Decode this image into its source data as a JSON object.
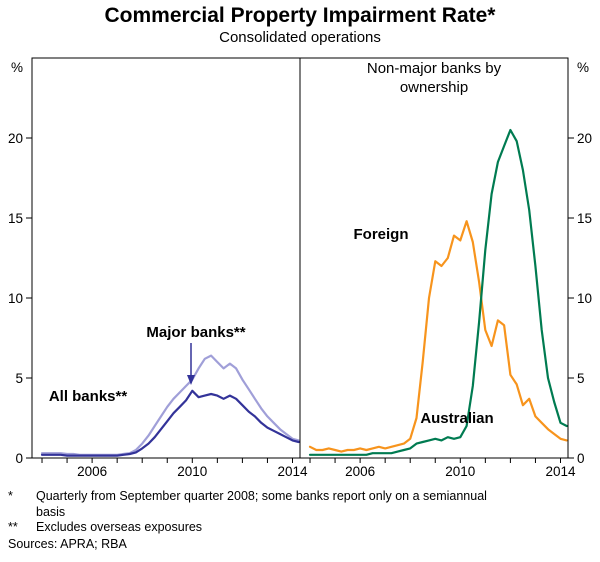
{
  "header": {
    "title": "Commercial Property Impairment Rate*",
    "subtitle": "Consolidated operations"
  },
  "right_panel": {
    "title_line1": "Non-major banks by",
    "title_line2": "ownership"
  },
  "annotations": {
    "all_banks": "All banks**",
    "major_banks": "Major banks**",
    "foreign": "Foreign",
    "australian": "Australian"
  },
  "footnotes": [
    {
      "marker": "*",
      "text": "Quarterly from September quarter 2008; some banks report only on a semiannual basis"
    },
    {
      "marker": "**",
      "text": "Excludes overseas exposures"
    }
  ],
  "sources": "Sources: APRA; RBA",
  "chart_data": [
    {
      "type": "line",
      "panel": "left",
      "panel_title": "",
      "x_start": 2004.0,
      "x_step": 0.25,
      "xlim": [
        2003.6,
        2014.3
      ],
      "ylim": [
        0,
        25
      ],
      "y_unit": "%",
      "y_ticks": [
        0,
        5,
        10,
        15,
        20
      ],
      "x_ticks_labeled": [
        2006,
        2010,
        2014
      ],
      "x_ticks_minor": [
        2004,
        2005,
        2006,
        2007,
        2008,
        2009,
        2010,
        2011,
        2012,
        2013,
        2014
      ],
      "grid": false,
      "series": [
        {
          "name": "All banks**",
          "color": "#a09fd8",
          "values": [
            0.3,
            0.3,
            0.3,
            0.3,
            0.25,
            0.25,
            0.2,
            0.2,
            0.2,
            0.2,
            0.2,
            0.2,
            0.2,
            0.25,
            0.3,
            0.5,
            0.9,
            1.4,
            2.0,
            2.6,
            3.2,
            3.7,
            4.1,
            4.5,
            4.9,
            5.6,
            6.2,
            6.4,
            6.0,
            5.6,
            5.9,
            5.6,
            4.9,
            4.3,
            3.7,
            3.1,
            2.6,
            2.2,
            1.8,
            1.5,
            1.2,
            1.1
          ]
        },
        {
          "name": "Major banks**",
          "color": "#333399",
          "values": [
            0.2,
            0.2,
            0.2,
            0.2,
            0.15,
            0.15,
            0.15,
            0.15,
            0.15,
            0.15,
            0.15,
            0.15,
            0.15,
            0.2,
            0.25,
            0.35,
            0.6,
            0.9,
            1.3,
            1.8,
            2.3,
            2.8,
            3.2,
            3.6,
            4.2,
            3.8,
            3.9,
            4.0,
            3.9,
            3.7,
            3.9,
            3.7,
            3.3,
            2.9,
            2.6,
            2.2,
            1.9,
            1.7,
            1.5,
            1.3,
            1.1,
            1.0
          ]
        }
      ]
    },
    {
      "type": "line",
      "panel": "right",
      "panel_title": "Non-major banks by ownership",
      "x_start": 2004.0,
      "x_step": 0.25,
      "xlim": [
        2003.6,
        2014.3
      ],
      "ylim": [
        0,
        25
      ],
      "y_unit": "%",
      "y_ticks": [
        0,
        5,
        10,
        15,
        20
      ],
      "x_ticks_labeled": [
        2006,
        2010,
        2014
      ],
      "x_ticks_minor": [
        2004,
        2005,
        2006,
        2007,
        2008,
        2009,
        2010,
        2011,
        2012,
        2013,
        2014
      ],
      "grid": false,
      "series": [
        {
          "name": "Foreign",
          "color": "#f7941d",
          "values": [
            0.7,
            0.5,
            0.5,
            0.6,
            0.5,
            0.4,
            0.5,
            0.5,
            0.6,
            0.5,
            0.6,
            0.7,
            0.6,
            0.7,
            0.8,
            0.9,
            1.2,
            2.5,
            6.0,
            10.0,
            12.3,
            12.0,
            12.5,
            13.9,
            13.6,
            14.8,
            13.5,
            11.0,
            8.0,
            7.0,
            8.6,
            8.3,
            5.2,
            4.6,
            3.3,
            3.7,
            2.6,
            2.2,
            1.8,
            1.5,
            1.2,
            1.1
          ]
        },
        {
          "name": "Australian",
          "color": "#007b51",
          "values": [
            0.2,
            0.2,
            0.2,
            0.2,
            0.2,
            0.2,
            0.2,
            0.2,
            0.2,
            0.2,
            0.3,
            0.3,
            0.3,
            0.3,
            0.4,
            0.5,
            0.6,
            0.9,
            1.0,
            1.1,
            1.2,
            1.1,
            1.3,
            1.2,
            1.3,
            2.0,
            4.5,
            8.5,
            13.0,
            16.5,
            18.5,
            19.5,
            20.5,
            19.8,
            18.0,
            15.5,
            12.0,
            8.0,
            5.0,
            3.5,
            2.2,
            2.0
          ]
        }
      ]
    }
  ]
}
